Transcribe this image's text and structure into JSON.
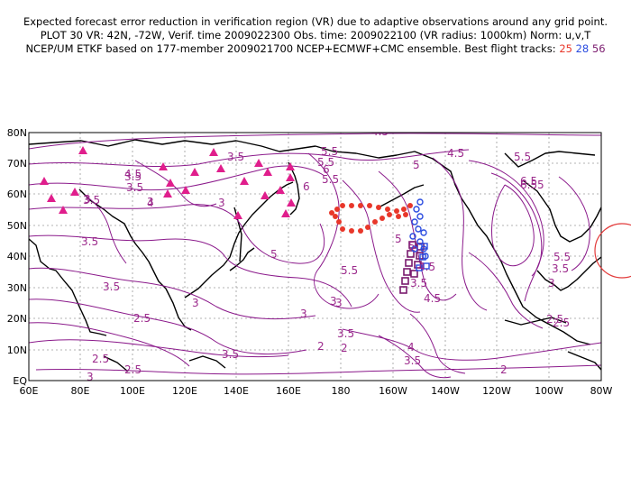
{
  "header": {
    "line1": "Expected forecast error reduction in verification region (VR) due to adaptive observations around any grid point.",
    "line2": "PLOT 30 VR: 42N, -72W, Verif. time 2009022300 Obs. time: 2009022100 (VR radius: 1000km) Norm: u,v,T",
    "line3_prefix": "NCEP/UM ETKF based on 177-member 2009021700 NCEP+ECMWF+CMC ensemble. Best flight tracks:",
    "track_a": "25",
    "track_b": "28",
    "track_c": "56"
  },
  "colors": {
    "contour": "#8b1a8b",
    "contour_label": "#9c2a8c",
    "track_25": "#e8372a",
    "track_28": "#2a4be0",
    "track_56": "#7a1a6e",
    "triangles": "#e01e8c",
    "vr_circle": "#e23b3b"
  },
  "axes": {
    "lat_ticks": [
      "80N",
      "70N",
      "60N",
      "50N",
      "40N",
      "30N",
      "20N",
      "10N",
      "EQ"
    ],
    "lon_ticks": [
      "60E",
      "80E",
      "100E",
      "120E",
      "140E",
      "160E",
      "180",
      "160W",
      "140W",
      "120W",
      "100W",
      "80W"
    ]
  },
  "contour_labels": [
    "3.5",
    "4.5",
    "5.5",
    "6",
    "3",
    "3.5",
    "4",
    "5.5",
    "6",
    "5",
    "6.5",
    "5.5",
    "3.5",
    "4.5",
    "3",
    "3.5",
    "5",
    "5",
    "3.5",
    "5.5",
    "4.5",
    "3.5",
    "5.5",
    "4.5",
    "3",
    "3",
    "3.5",
    "5",
    "3",
    "2.5",
    "3",
    "2.5",
    "3.5",
    "3",
    "2",
    "4",
    "3.5",
    "2.5",
    "2",
    "2.5",
    "2",
    "3",
    "4.5",
    "3.5",
    "3",
    "6.5",
    "5.5",
    "5",
    "2.5",
    "3.5"
  ]
}
